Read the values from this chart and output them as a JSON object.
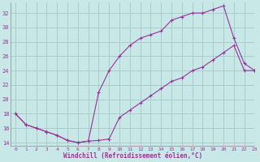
{
  "xlabel": "Windchill (Refroidissement éolien,°C)",
  "bg_color": "#c8e8e8",
  "grid_color": "#aacccc",
  "line_color": "#993399",
  "line1_x": [
    0,
    1,
    2,
    3,
    4,
    5,
    6,
    7,
    8,
    9,
    10,
    11,
    12,
    13,
    14,
    15,
    16,
    17,
    18,
    19,
    20,
    21,
    22,
    23
  ],
  "line1_y": [
    18,
    16.5,
    16,
    15.5,
    15,
    14.3,
    14.0,
    14.2,
    21.0,
    24.0,
    26.0,
    27.5,
    28.5,
    29.0,
    29.5,
    31.0,
    31.5,
    32.0,
    32.0,
    32.5,
    33.0,
    28.5,
    25.0,
    24.0
  ],
  "line2_x": [
    0,
    1,
    2,
    3,
    4,
    5,
    6,
    7,
    8,
    9,
    10,
    11,
    12,
    13,
    14,
    15,
    16,
    17,
    18,
    19,
    20,
    21,
    22,
    23
  ],
  "line2_y": [
    18,
    16.5,
    16,
    15.5,
    15,
    14.3,
    14.0,
    14.2,
    14.3,
    14.5,
    17.5,
    18.5,
    19.5,
    20.5,
    21.5,
    22.5,
    23.0,
    24.0,
    24.5,
    25.5,
    26.5,
    27.5,
    24.0,
    24.0
  ],
  "xlim": [
    -0.5,
    23
  ],
  "ylim": [
    13.5,
    33.5
  ],
  "yticks": [
    14,
    16,
    18,
    20,
    22,
    24,
    26,
    28,
    30,
    32
  ],
  "xticks": [
    0,
    1,
    2,
    3,
    4,
    5,
    6,
    7,
    8,
    9,
    10,
    11,
    12,
    13,
    14,
    15,
    16,
    17,
    18,
    19,
    20,
    21,
    22,
    23
  ]
}
